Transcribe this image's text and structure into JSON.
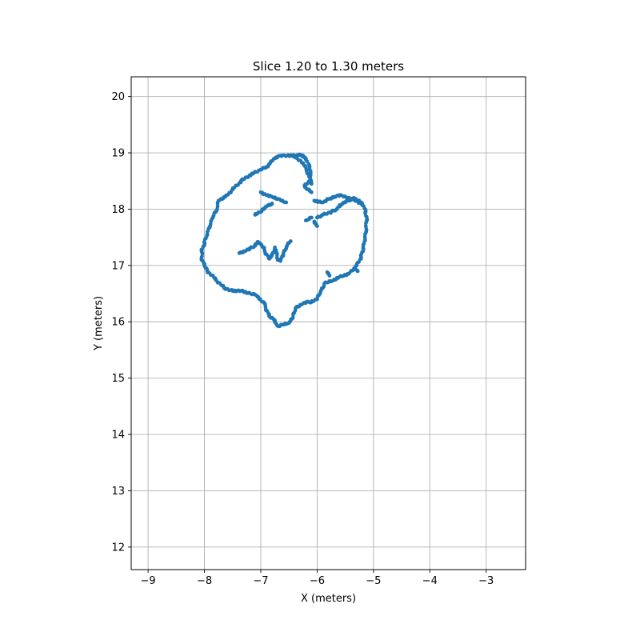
{
  "chart_data": {
    "type": "scatter",
    "title": "Slice 1.20 to 1.30 meters",
    "xlabel": "X (meters)",
    "ylabel": "Y (meters)",
    "xlim": [
      -9.3,
      -2.3
    ],
    "ylim": [
      11.6,
      20.35
    ],
    "xticks": [
      -9,
      -8,
      -7,
      -6,
      -5,
      -4,
      -3
    ],
    "xtick_labels": [
      "−9",
      "−8",
      "−7",
      "−6",
      "−5",
      "−4",
      "−3"
    ],
    "yticks": [
      12,
      13,
      14,
      15,
      16,
      17,
      18,
      19,
      20
    ],
    "ytick_labels": [
      "12",
      "13",
      "14",
      "15",
      "16",
      "17",
      "18",
      "19",
      "20"
    ],
    "grid": true,
    "color": "#1f77b4",
    "series": [
      {
        "x": [
          -6.1,
          -6.2,
          -6.4,
          -6.65,
          -6.75,
          -6.9,
          -7.0,
          -7.2,
          -7.35,
          -7.5,
          -7.6,
          -7.75,
          -7.8,
          -7.85,
          -7.9,
          -7.95,
          -8.0,
          -8.05,
          -8.05,
          -8.0,
          -7.95,
          -7.8,
          -7.65,
          -7.5,
          -7.35,
          -7.1,
          -6.95,
          -6.9,
          -6.85,
          -6.75,
          -6.72,
          -6.68,
          -6.6,
          -6.5,
          -6.45,
          -6.42,
          -6.38,
          -6.3,
          -6.2,
          -6.1,
          -6.0,
          -5.95,
          -5.9,
          -5.85,
          -5.75,
          -5.6,
          -5.45,
          -5.3,
          -5.22,
          -5.18,
          -5.15,
          -5.13,
          -5.12,
          -5.14,
          -5.2,
          -5.35,
          -5.45,
          -5.5,
          -5.55,
          -5.6,
          -5.65,
          -5.75,
          -5.9,
          -6.0
        ],
        "y": [
          18.45,
          18.75,
          18.95,
          18.95,
          18.9,
          18.75,
          18.7,
          18.6,
          18.5,
          18.35,
          18.25,
          18.15,
          17.95,
          17.85,
          17.7,
          17.55,
          17.4,
          17.25,
          17.1,
          17.0,
          16.9,
          16.75,
          16.6,
          16.55,
          16.55,
          16.48,
          16.35,
          16.2,
          16.1,
          16.02,
          15.95,
          15.92,
          15.95,
          15.98,
          16.05,
          16.15,
          16.25,
          16.3,
          16.35,
          16.35,
          16.4,
          16.5,
          16.6,
          16.7,
          16.72,
          16.8,
          16.85,
          17.0,
          17.15,
          17.3,
          17.45,
          17.6,
          17.8,
          17.95,
          18.1,
          18.2,
          18.15,
          18.12,
          18.1,
          18.05,
          18.0,
          17.95,
          17.9,
          17.85
        ]
      },
      {
        "x": [
          -6.45,
          -6.4,
          -6.35,
          -6.3,
          -6.25,
          -6.2,
          -6.18
        ],
        "y": [
          18.95,
          18.95,
          18.96,
          18.96,
          18.95,
          18.9,
          18.85
        ]
      },
      {
        "x": [
          -6.15,
          -6.13,
          -6.12,
          -6.14,
          -6.18,
          -6.22,
          -6.2,
          -6.15,
          -6.1
        ],
        "y": [
          18.8,
          18.7,
          18.6,
          18.5,
          18.45,
          18.42,
          18.38,
          18.35,
          18.3
        ]
      },
      {
        "x": [
          -6.05,
          -5.9,
          -5.8,
          -5.7,
          -5.6,
          -5.5,
          -5.4,
          -5.3,
          -5.22
        ],
        "y": [
          18.15,
          18.12,
          18.18,
          18.22,
          18.25,
          18.22,
          18.18,
          18.15,
          18.1
        ]
      },
      {
        "x": [
          -7.0,
          -6.9,
          -6.8,
          -6.7
        ],
        "y": [
          18.3,
          18.25,
          18.22,
          18.18
        ]
      },
      {
        "x": [
          -7.1,
          -7.0,
          -6.95,
          -6.9,
          -6.85,
          -6.8
        ],
        "y": [
          17.9,
          17.95,
          18.0,
          18.05,
          18.08,
          18.1
        ]
      },
      {
        "x": [
          -6.2,
          -6.15,
          -6.1
        ],
        "y": [
          17.8,
          17.82,
          17.85
        ]
      },
      {
        "x": [
          -6.05,
          -6.02,
          -6.0
        ],
        "y": [
          17.78,
          17.74,
          17.7
        ]
      },
      {
        "x": [
          -6.7,
          -6.62,
          -6.55
        ],
        "y": [
          18.18,
          18.15,
          18.12
        ]
      },
      {
        "x": [
          -7.38,
          -7.3,
          -7.2,
          -7.1,
          -7.05,
          -7.0,
          -6.95,
          -6.9,
          -6.85,
          -6.8,
          -6.75,
          -6.7,
          -6.65,
          -6.6,
          -6.55,
          -6.5,
          -6.47
        ],
        "y": [
          17.22,
          17.25,
          17.3,
          17.35,
          17.42,
          17.38,
          17.32,
          17.2,
          17.12,
          17.2,
          17.32,
          17.1,
          17.08,
          17.2,
          17.3,
          17.4,
          17.43
        ]
      },
      {
        "x": [
          -5.82,
          -5.8,
          -5.78
        ],
        "y": [
          16.88,
          16.85,
          16.82
        ]
      },
      {
        "x": [
          -5.3,
          -5.28
        ],
        "y": [
          16.92,
          16.9
        ]
      }
    ]
  }
}
